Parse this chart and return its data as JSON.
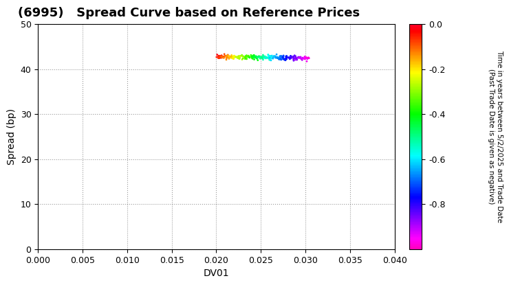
{
  "title": "(6995)   Spread Curve based on Reference Prices",
  "xlabel": "DV01",
  "ylabel": "Spread (bp)",
  "xlim": [
    0.0,
    0.04
  ],
  "ylim": [
    0,
    50
  ],
  "xticks": [
    0.0,
    0.005,
    0.01,
    0.015,
    0.02,
    0.025,
    0.03,
    0.035,
    0.04
  ],
  "yticks": [
    0,
    10,
    20,
    30,
    40,
    50
  ],
  "colorbar_label": "Time in years between 5/2/2025 and Trade Date\n(Past Trade Date is given as negative)",
  "colorbar_vmin": -1.0,
  "colorbar_vmax": 0.0,
  "colorbar_ticks": [
    0.0,
    -0.2,
    -0.4,
    -0.6,
    -0.8
  ],
  "n_points": 300,
  "title_fontsize": 13,
  "axis_fontsize": 10,
  "tick_fontsize": 9
}
